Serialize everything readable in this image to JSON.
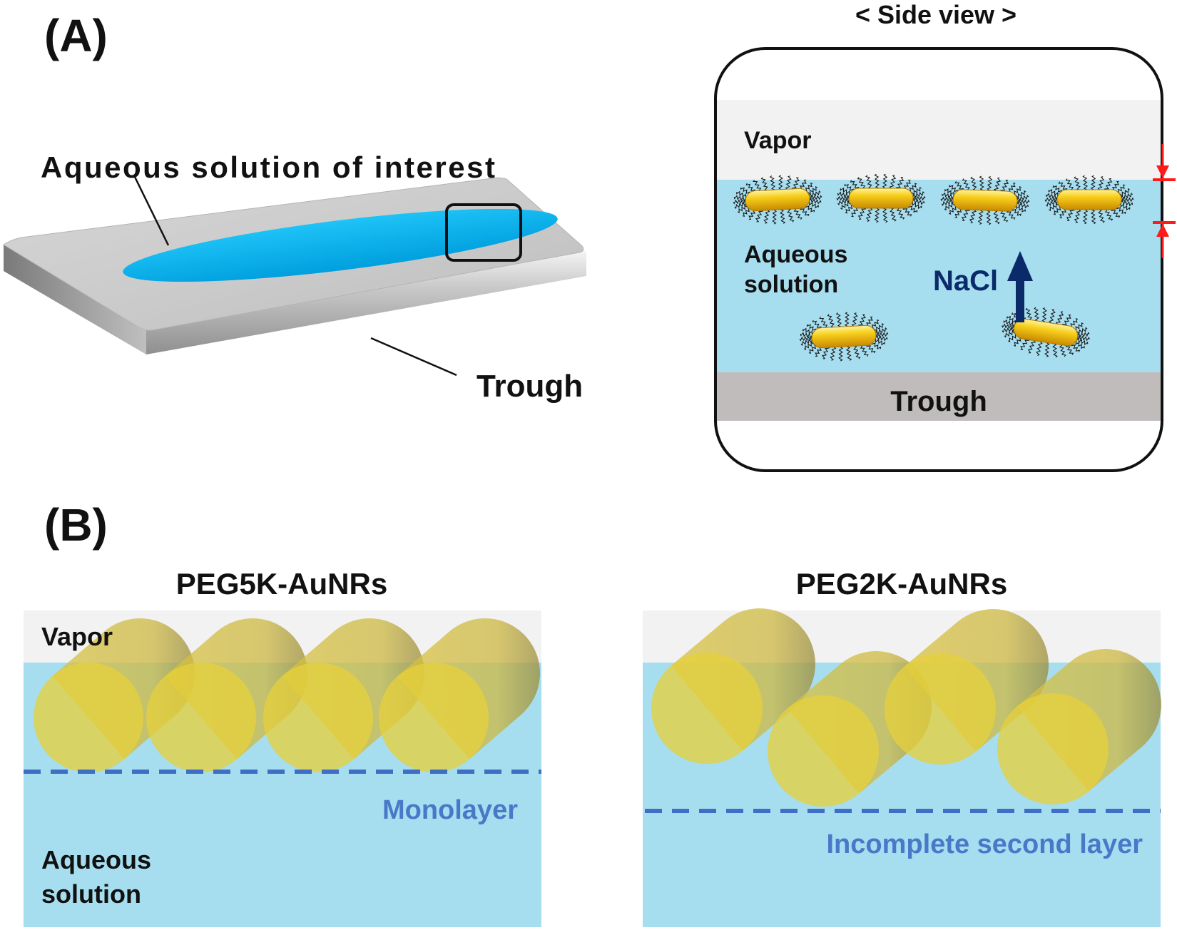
{
  "panel_a": {
    "label": "(A)",
    "solution_label": "Aqueous solution of interest",
    "trough_label": "Trough",
    "side_view": {
      "title": "< Side view >",
      "vapor_label": "Vapor",
      "aqueous_label_line1": "Aqueous",
      "aqueous_label_line2": "solution",
      "nacl_label": "NaCl",
      "trough_label": "Trough"
    }
  },
  "panel_b": {
    "label": "(B)",
    "left": {
      "title": "PEG5K-AuNRs",
      "vapor_label": "Vapor",
      "aqueous_label_line1": "Aqueous",
      "aqueous_label_line2": "solution",
      "layer_label": "Monolayer"
    },
    "right": {
      "title": "PEG2K-AuNRs",
      "layer_label": "Incomplete second layer"
    }
  },
  "colors": {
    "water": "#a6def0",
    "vapor": "#f2f2f2",
    "trough": "#c0bcbc",
    "solution_drop": "#00b4f0",
    "gold": "#f3c20c",
    "gold_transparent": "#e6cf3c",
    "nacl_arrow": "#0a2a6a",
    "dashed_line": "#3f6fc4",
    "red_marker": "#ff1a1a"
  }
}
